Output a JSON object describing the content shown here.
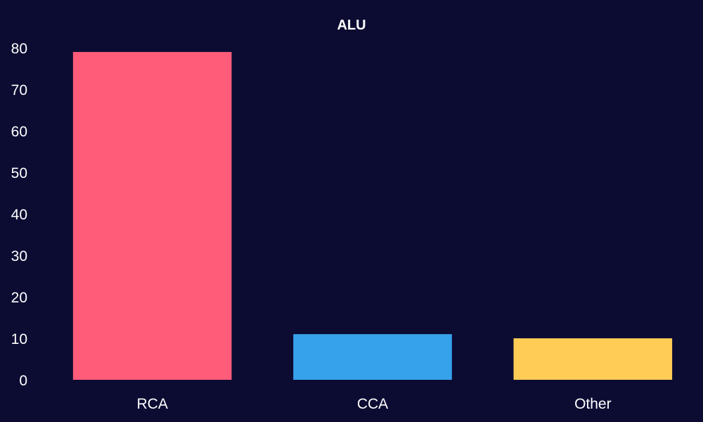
{
  "chart_data": {
    "type": "bar",
    "title": "ALU",
    "xlabel": "",
    "ylabel": "",
    "categories": [
      "RCA",
      "CCA",
      "Other"
    ],
    "values": [
      79,
      11,
      10
    ],
    "colors": [
      "#ff5c7a",
      "#36a2eb",
      "#ffcc55"
    ],
    "ylim": [
      0,
      80
    ],
    "yticks": [
      0,
      10,
      20,
      30,
      40,
      50,
      60,
      70,
      80
    ],
    "grid": false,
    "legend": "none",
    "background": "#0c0c33",
    "text_color": "#ffffff"
  }
}
